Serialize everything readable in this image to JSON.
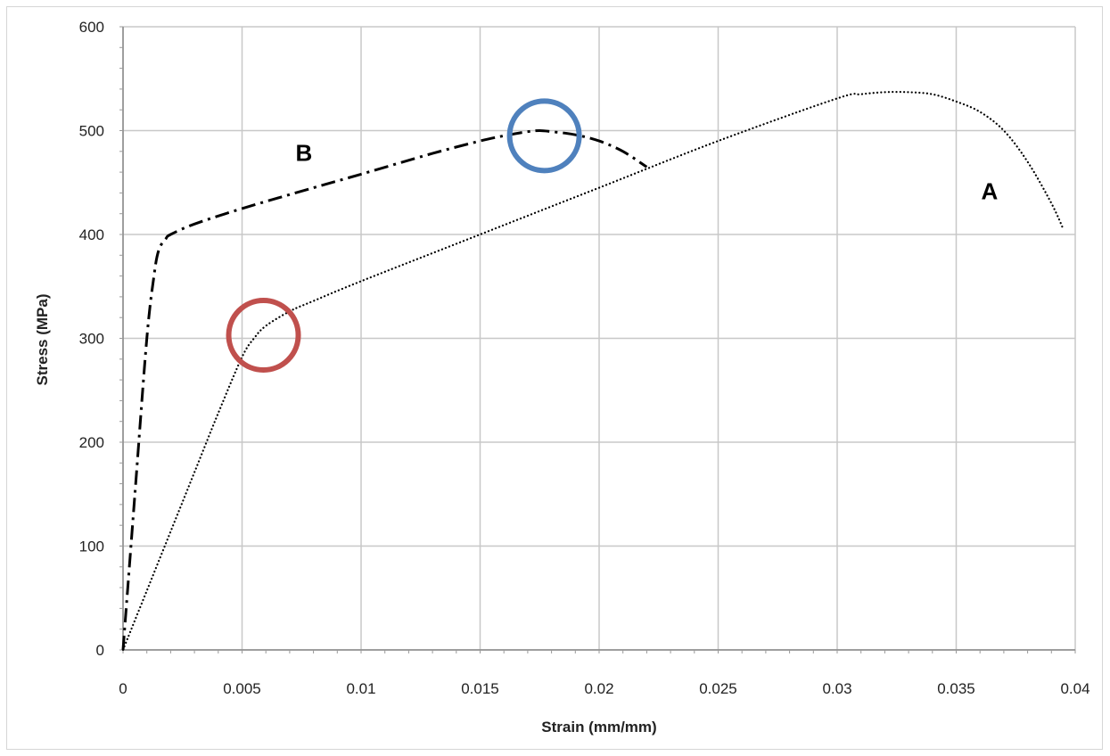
{
  "chart_data": {
    "type": "line",
    "xlabel": "Strain (mm/mm)",
    "ylabel": "Stress (MPa)",
    "xlim": [
      0,
      0.04
    ],
    "ylim": [
      0,
      600
    ],
    "x_ticks": [
      "0",
      "0.005",
      "0.01",
      "0.015",
      "0.02",
      "0.025",
      "0.03",
      "0.035",
      "0.04"
    ],
    "y_ticks": [
      "0",
      "100",
      "200",
      "300",
      "400",
      "500",
      "600"
    ],
    "grid": true,
    "legend": "none",
    "series": [
      {
        "name": "A",
        "style": "dotted",
        "color": "#000000",
        "x": [
          0,
          0.001,
          0.002,
          0.003,
          0.004,
          0.005,
          0.0055,
          0.006,
          0.007,
          0.008,
          0.01,
          0.015,
          0.02,
          0.025,
          0.03,
          0.031,
          0.032,
          0.033,
          0.034,
          0.035,
          0.036,
          0.037,
          0.038,
          0.039,
          0.0395
        ],
        "y": [
          0,
          57,
          114,
          171,
          228,
          282,
          300,
          312,
          326,
          336,
          355,
          400,
          445,
          490,
          531,
          535,
          537,
          537,
          535,
          528,
          518,
          500,
          470,
          430,
          405
        ]
      },
      {
        "name": "B",
        "style": "dash-dot",
        "color": "#000000",
        "x": [
          0,
          0.0005,
          0.001,
          0.0013,
          0.0015,
          0.0018,
          0.002,
          0.003,
          0.005,
          0.008,
          0.01,
          0.013,
          0.015,
          0.016,
          0.017,
          0.0175,
          0.018,
          0.019,
          0.02,
          0.021,
          0.022
        ],
        "y": [
          0,
          150,
          300,
          360,
          385,
          396,
          400,
          410,
          425,
          445,
          458,
          478,
          490,
          495,
          499,
          500,
          499,
          496,
          490,
          480,
          465
        ]
      }
    ],
    "annotations": [
      {
        "type": "text",
        "text": "B",
        "x": 0.0076,
        "y": 471
      },
      {
        "type": "text",
        "text": "A",
        "x": 0.0364,
        "y": 434
      },
      {
        "type": "circle",
        "color": "#c0504d",
        "x": 0.0059,
        "y": 303
      },
      {
        "type": "circle",
        "color": "#4f81bd",
        "x": 0.0177,
        "y": 495
      }
    ]
  }
}
